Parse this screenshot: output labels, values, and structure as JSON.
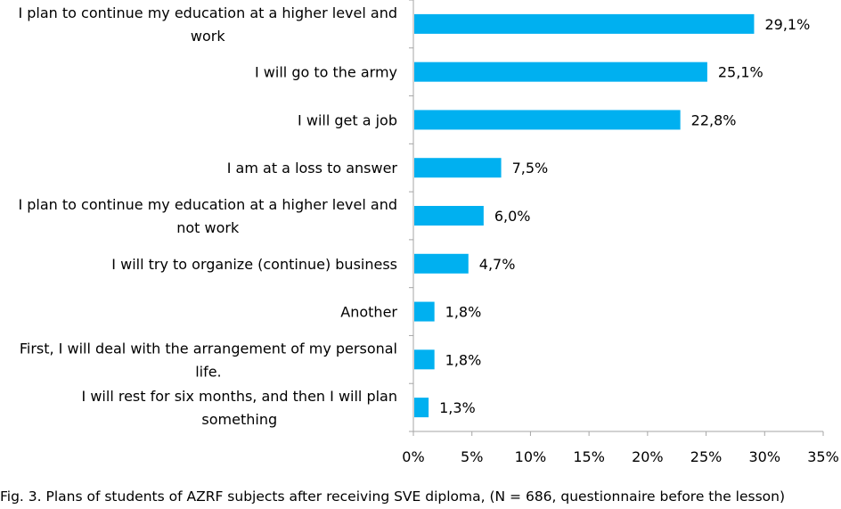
{
  "chart_data": {
    "type": "bar",
    "orientation": "horizontal",
    "categories": [
      "I plan to continue my education at a higher level and work",
      "I will go to the army",
      "I will get a job",
      "I am at a loss to answer",
      "I plan to continue my education at a higher level and not work",
      "I will try to organize (continue) business",
      "Another",
      "First, I will deal with the arrangement of my personal life.",
      "I will rest for six months, and then I will plan something"
    ],
    "category_lines": [
      [
        "I plan to continue my education at a higher level and",
        "work"
      ],
      [
        "I will go to the army"
      ],
      [
        "I will get a job"
      ],
      [
        "I am at a loss to answer"
      ],
      [
        "I plan to continue my education at a higher level and",
        "not work"
      ],
      [
        "I will try to organize (continue) business"
      ],
      [
        "Another"
      ],
      [
        "First, I will deal with the arrangement of my personal",
        "life."
      ],
      [
        "I will rest for six months, and then I will plan",
        "something"
      ]
    ],
    "values": [
      29.1,
      25.1,
      22.8,
      7.5,
      6.0,
      4.7,
      1.8,
      1.8,
      1.3
    ],
    "value_labels": [
      "29,1%",
      "25,1%",
      "22,8%",
      "7,5%",
      "6,0%",
      "4,7%",
      "1,8%",
      "1,8%",
      "1,3%"
    ],
    "xlim": [
      0,
      35
    ],
    "x_ticks": [
      0,
      5,
      10,
      15,
      20,
      25,
      30,
      35
    ],
    "x_tick_labels": [
      "0%",
      "5%",
      "10%",
      "15%",
      "20%",
      "25%",
      "30%",
      "35%"
    ],
    "bar_color": "#00B0F0",
    "axis_color": "#A6A6A6",
    "grid": false,
    "legend": "none"
  },
  "caption": "Fig. 3. Plans of students of AZRF subjects after receiving SVE diploma, (N = 686, questionnaire before the lesson)"
}
